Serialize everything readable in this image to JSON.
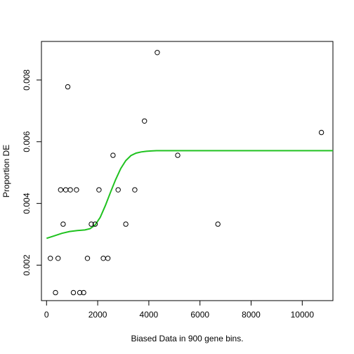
{
  "chart_data": {
    "type": "scatter",
    "title": "",
    "xlabel": "Biased Data in 900 gene bins.",
    "ylabel": "Proportion DE",
    "xlim": [
      -200,
      11200
    ],
    "ylim": [
      0.00085,
      0.00925
    ],
    "xticks": [
      0,
      2000,
      4000,
      6000,
      8000,
      10000
    ],
    "xtick_labels": [
      "0",
      "2000",
      "4000",
      "6000",
      "8000",
      "10000"
    ],
    "yticks": [
      0.002,
      0.004,
      0.006,
      0.008
    ],
    "ytick_labels": [
      "0.002",
      "0.004",
      "0.006",
      "0.008"
    ],
    "grid": false,
    "points": {
      "x": [
        150,
        350,
        450,
        550,
        650,
        750,
        830,
        930,
        1050,
        1170,
        1300,
        1450,
        1600,
        1750,
        1900,
        2050,
        2220,
        2400,
        2600,
        2800,
        3100,
        3450,
        3830,
        4330,
        5130,
        6700,
        10750
      ],
      "y": [
        0.00222,
        0.00111,
        0.00222,
        0.00444,
        0.00333,
        0.00444,
        0.00778,
        0.00444,
        0.00111,
        0.00444,
        0.00111,
        0.00111,
        0.00222,
        0.00333,
        0.00333,
        0.00444,
        0.00222,
        0.00222,
        0.00556,
        0.00444,
        0.00333,
        0.00444,
        0.00667,
        0.00889,
        0.00556,
        0.00333,
        0.0063
      ]
    },
    "fit_line": {
      "color": "#1fc21f",
      "x": [
        0,
        300,
        600,
        900,
        1200,
        1500,
        1700,
        1900,
        2100,
        2300,
        2500,
        2700,
        2900,
        3100,
        3300,
        3500,
        3700,
        3900,
        4100,
        4300,
        4600,
        5000,
        6000,
        8000,
        10000,
        11200
      ],
      "y": [
        0.00287,
        0.00295,
        0.00303,
        0.00309,
        0.00312,
        0.00314,
        0.00318,
        0.0033,
        0.00355,
        0.00393,
        0.00436,
        0.00477,
        0.00513,
        0.00539,
        0.00555,
        0.00563,
        0.00567,
        0.00569,
        0.0057,
        0.00571,
        0.00571,
        0.00571,
        0.00571,
        0.00571,
        0.00571,
        0.00571
      ]
    }
  }
}
